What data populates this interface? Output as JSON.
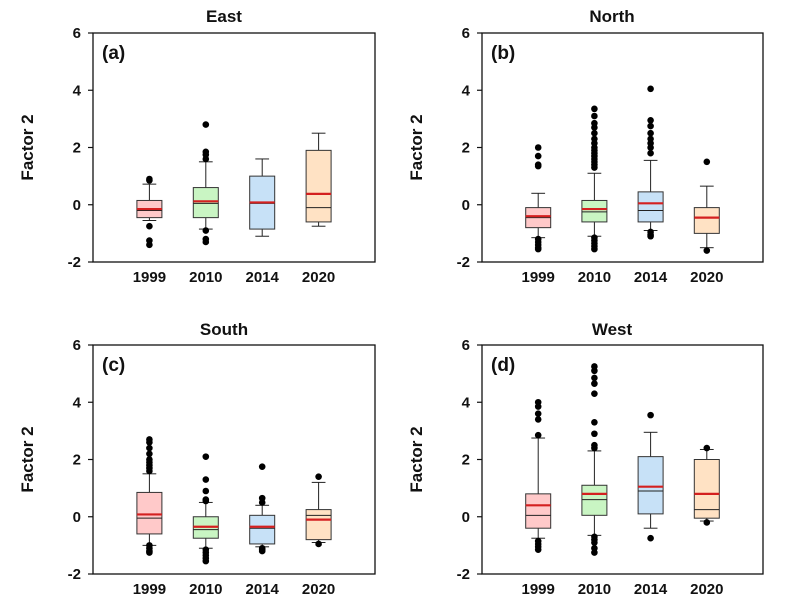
{
  "chart_data": [
    {
      "type": "box",
      "title": "East",
      "panel_label": "(a)",
      "ylabel": "Factor 2",
      "ylim": [
        -2,
        6
      ],
      "yticks": [
        "-2",
        "0",
        "2",
        "4",
        "6"
      ],
      "categories": [
        "1999",
        "2010",
        "2014",
        "2020"
      ],
      "colors": [
        "#ffc9c9",
        "#c9f5c3",
        "#c7e1f7",
        "#ffe2c4"
      ],
      "mean_color": "#d42020",
      "boxes": [
        {
          "whislo": -0.55,
          "q1": -0.45,
          "med": -0.2,
          "q3": 0.15,
          "whishi": 0.72,
          "mean": -0.15,
          "outliers": [
            0.9,
            0.85,
            -0.75,
            -1.25,
            -1.4
          ]
        },
        {
          "whislo": -0.85,
          "q1": -0.45,
          "med": 0.05,
          "q3": 0.6,
          "whishi": 1.5,
          "mean": 0.12,
          "outliers": [
            2.8,
            1.85,
            1.75,
            1.6,
            -0.9,
            -1.2,
            -1.3
          ]
        },
        {
          "whislo": -1.1,
          "q1": -0.85,
          "med": 0.05,
          "q3": 1.0,
          "whishi": 1.6,
          "mean": 0.08,
          "outliers": []
        },
        {
          "whislo": -0.75,
          "q1": -0.6,
          "med": -0.1,
          "q3": 1.9,
          "whishi": 2.5,
          "mean": 0.38,
          "outliers": []
        }
      ]
    },
    {
      "type": "box",
      "title": "North",
      "panel_label": "(b)",
      "ylabel": "Factor 2",
      "ylim": [
        -2,
        6
      ],
      "yticks": [
        "-2",
        "0",
        "2",
        "4",
        "6"
      ],
      "categories": [
        "1999",
        "2010",
        "2014",
        "2020"
      ],
      "colors": [
        "#ffc9c9",
        "#c9f5c3",
        "#c7e1f7",
        "#ffe2c4"
      ],
      "mean_color": "#d42020",
      "boxes": [
        {
          "whislo": -1.15,
          "q1": -0.8,
          "med": -0.45,
          "q3": -0.1,
          "whishi": 0.4,
          "mean": -0.4,
          "outliers": [
            2.0,
            1.7,
            1.4,
            1.35,
            -1.2,
            -1.3,
            -1.4,
            -1.5,
            -1.55
          ]
        },
        {
          "whislo": -1.1,
          "q1": -0.6,
          "med": -0.25,
          "q3": 0.15,
          "whishi": 1.1,
          "mean": -0.15,
          "outliers": [
            3.35,
            3.1,
            2.85,
            2.7,
            2.5,
            2.3,
            2.15,
            2.0,
            1.9,
            1.8,
            1.7,
            1.6,
            1.5,
            1.4,
            1.3,
            -1.15,
            -1.25,
            -1.35,
            -1.45,
            -1.55
          ]
        },
        {
          "whislo": -0.9,
          "q1": -0.6,
          "med": -0.2,
          "q3": 0.45,
          "whishi": 1.55,
          "mean": 0.05,
          "outliers": [
            4.05,
            2.95,
            2.75,
            2.5,
            2.3,
            2.15,
            2.0,
            1.8,
            -0.95,
            -1.05,
            -1.1
          ]
        },
        {
          "whislo": -1.5,
          "q1": -1.0,
          "med": -0.45,
          "q3": -0.1,
          "whishi": 0.65,
          "mean": -0.45,
          "outliers": [
            1.5,
            -1.6
          ]
        }
      ]
    },
    {
      "type": "box",
      "title": "South",
      "panel_label": "(c)",
      "ylabel": "Factor 2",
      "ylim": [
        -2,
        6
      ],
      "yticks": [
        "-2",
        "0",
        "2",
        "4",
        "6"
      ],
      "categories": [
        "1999",
        "2010",
        "2014",
        "2020"
      ],
      "colors": [
        "#ffc9c9",
        "#c9f5c3",
        "#c7e1f7",
        "#ffe2c4"
      ],
      "mean_color": "#d42020",
      "boxes": [
        {
          "whislo": -1.0,
          "q1": -0.6,
          "med": -0.05,
          "q3": 0.85,
          "whishi": 1.5,
          "mean": 0.08,
          "outliers": [
            2.7,
            2.6,
            2.4,
            2.2,
            2.0,
            1.9,
            1.8,
            1.7,
            1.6,
            -1.0,
            -1.1,
            -1.2,
            -1.25
          ]
        },
        {
          "whislo": -1.1,
          "q1": -0.75,
          "med": -0.45,
          "q3": 0.0,
          "whishi": 0.5,
          "mean": -0.35,
          "outliers": [
            2.1,
            1.3,
            0.9,
            0.6,
            0.55,
            -1.15,
            -1.25,
            -1.35,
            -1.45,
            -1.55
          ]
        },
        {
          "whislo": -1.05,
          "q1": -0.95,
          "med": -0.4,
          "q3": 0.05,
          "whishi": 0.4,
          "mean": -0.35,
          "outliers": [
            1.75,
            0.65,
            0.5,
            -1.1,
            -1.15,
            -1.2
          ]
        },
        {
          "whislo": -0.9,
          "q1": -0.8,
          "med": 0.05,
          "q3": 0.25,
          "whishi": 1.2,
          "mean": -0.1,
          "outliers": [
            1.4,
            -0.95
          ]
        }
      ]
    },
    {
      "type": "box",
      "title": "West",
      "panel_label": "(d)",
      "ylabel": "Factor 2",
      "ylim": [
        -2,
        6
      ],
      "yticks": [
        "-2",
        "0",
        "2",
        "4",
        "6"
      ],
      "categories": [
        "1999",
        "2010",
        "2014",
        "2020"
      ],
      "colors": [
        "#ffc9c9",
        "#c9f5c3",
        "#c7e1f7",
        "#ffe2c4"
      ],
      "mean_color": "#d42020",
      "boxes": [
        {
          "whislo": -0.75,
          "q1": -0.4,
          "med": 0.05,
          "q3": 0.8,
          "whishi": 2.75,
          "mean": 0.4,
          "outliers": [
            4.0,
            3.85,
            3.6,
            3.4,
            2.85,
            -0.85,
            -0.95,
            -1.05,
            -1.15
          ]
        },
        {
          "whislo": -0.65,
          "q1": 0.05,
          "med": 0.6,
          "q3": 1.1,
          "whishi": 2.3,
          "mean": 0.8,
          "outliers": [
            5.25,
            5.1,
            4.85,
            4.65,
            4.3,
            3.3,
            2.9,
            2.5,
            2.4,
            -0.7,
            -0.8,
            -0.9,
            -1.1,
            -1.25
          ]
        },
        {
          "whislo": -0.4,
          "q1": 0.1,
          "med": 0.9,
          "q3": 2.1,
          "whishi": 2.95,
          "mean": 1.05,
          "outliers": [
            3.55,
            -0.75
          ]
        },
        {
          "whislo": -0.15,
          "q1": -0.05,
          "med": 0.25,
          "q3": 2.0,
          "whishi": 2.35,
          "mean": 0.8,
          "outliers": [
            2.4,
            -0.2
          ]
        }
      ]
    }
  ]
}
